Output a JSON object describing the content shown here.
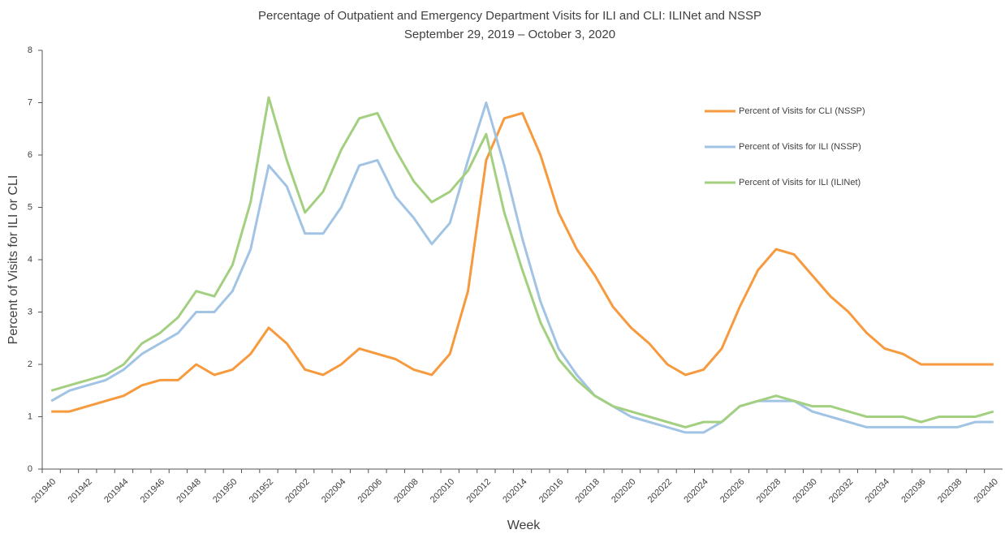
{
  "chart_data": {
    "type": "line",
    "title": "Percentage of Outpatient and Emergency Department Visits for ILI and CLI: ILINet and NSSP",
    "subtitle": "September 29, 2019 – October 3, 2020",
    "x_label": "Week",
    "y_label": "Percent of Visits for ILI or CLI",
    "categories": [
      "201940",
      null,
      "201942",
      null,
      "201944",
      null,
      "201946",
      null,
      "201948",
      null,
      "201950",
      null,
      "201952",
      null,
      "202002",
      null,
      "202004",
      null,
      "202006",
      null,
      "202008",
      null,
      "202010",
      null,
      "202012",
      null,
      "202014",
      null,
      "202016",
      null,
      "202018",
      null,
      "202020",
      null,
      "202022",
      null,
      "202024",
      null,
      "202026",
      null,
      "202028",
      null,
      "202030",
      null,
      "202032",
      null,
      "202034",
      null,
      "202036",
      null,
      "202038",
      null,
      "202040"
    ],
    "series": [
      {
        "name": "Percent of Visits for CLI (NSSP)",
        "color": "#f79a3e",
        "values": [
          1.1,
          1.1,
          1.2,
          1.3,
          1.4,
          1.6,
          1.7,
          1.7,
          2.0,
          1.8,
          1.9,
          2.2,
          2.7,
          2.4,
          1.9,
          1.8,
          2.0,
          2.3,
          2.2,
          2.1,
          1.9,
          1.8,
          2.2,
          3.4,
          5.9,
          6.7,
          6.8,
          6.0,
          4.9,
          4.2,
          3.7,
          3.1,
          2.7,
          2.4,
          2.0,
          1.8,
          1.9,
          2.3,
          3.1,
          3.8,
          4.2,
          4.1,
          3.7,
          3.3,
          3.0,
          2.6,
          2.3,
          2.2,
          2.0,
          2.0,
          2.0,
          2.0,
          2.0
        ]
      },
      {
        "name": "Percent of Visits for ILI (NSSP)",
        "color": "#a2c4e4",
        "values": [
          1.3,
          1.5,
          1.6,
          1.7,
          1.9,
          2.2,
          2.4,
          2.6,
          3.0,
          3.0,
          3.4,
          4.2,
          5.8,
          5.4,
          4.5,
          4.5,
          5.0,
          5.8,
          5.9,
          5.2,
          4.8,
          4.3,
          4.7,
          5.9,
          7.0,
          5.8,
          4.4,
          3.2,
          2.3,
          1.8,
          1.4,
          1.2,
          1.0,
          0.9,
          0.8,
          0.7,
          0.7,
          0.9,
          1.2,
          1.3,
          1.3,
          1.3,
          1.1,
          1.0,
          0.9,
          0.8,
          0.8,
          0.8,
          0.8,
          0.8,
          0.8,
          0.9,
          0.9
        ]
      },
      {
        "name": "Percent of Visits for ILI (ILINet)",
        "color": "#a3d080",
        "values": [
          1.5,
          1.6,
          1.7,
          1.8,
          2.0,
          2.4,
          2.6,
          2.9,
          3.4,
          3.3,
          3.9,
          5.1,
          7.1,
          5.9,
          4.9,
          5.3,
          6.1,
          6.7,
          6.8,
          6.1,
          5.5,
          5.1,
          5.3,
          5.7,
          6.4,
          4.9,
          3.8,
          2.8,
          2.1,
          1.7,
          1.4,
          1.2,
          1.1,
          1.0,
          0.9,
          0.8,
          0.9,
          0.9,
          1.2,
          1.3,
          1.4,
          1.3,
          1.2,
          1.2,
          1.1,
          1.0,
          1.0,
          1.0,
          0.9,
          1.0,
          1.0,
          1.0,
          1.1
        ]
      }
    ],
    "ylim": [
      0,
      8
    ],
    "yticks": [
      0,
      1,
      2,
      3,
      4,
      5,
      6,
      7,
      8
    ],
    "legend": "right"
  }
}
